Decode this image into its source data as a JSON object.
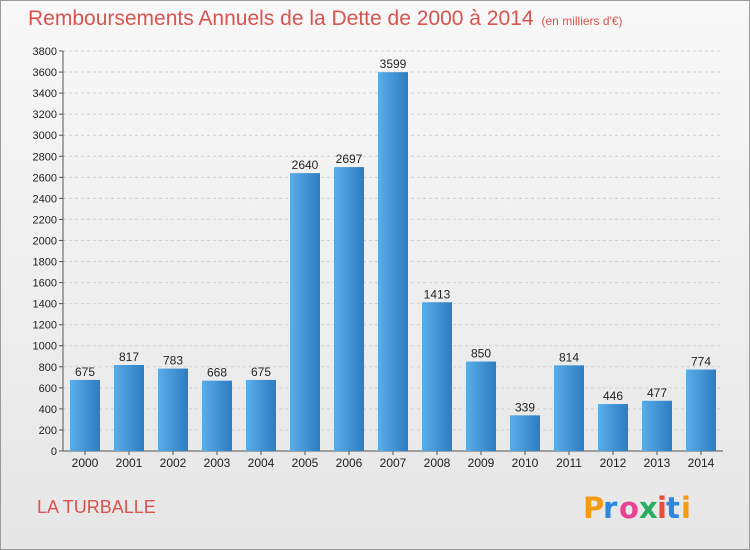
{
  "header": {
    "title": "Remboursements Annuels de la Dette de 2000 à 2014",
    "unit": "(en milliers d'€)"
  },
  "footer": {
    "place": "LA TURBALLE",
    "brand": "Proxiti"
  },
  "colors": {
    "title": "#d9534f",
    "bar_light": "#5aaee8",
    "bar_dark": "#2c7cc2"
  },
  "chart_data": {
    "type": "bar",
    "title": "Remboursements Annuels de la Dette de 2000 à 2014",
    "subtitle": "(en milliers d'€)",
    "xlabel": "",
    "ylabel": "",
    "categories": [
      "2000",
      "2001",
      "2002",
      "2003",
      "2004",
      "2005",
      "2006",
      "2007",
      "2008",
      "2009",
      "2010",
      "2011",
      "2012",
      "2013",
      "2014"
    ],
    "values": [
      675,
      817,
      783,
      668,
      675,
      2640,
      2697,
      3599,
      1413,
      850,
      339,
      814,
      446,
      477,
      774
    ],
    "ylim": [
      0,
      3800
    ],
    "ytick_step": 200,
    "grid": true,
    "data_labels": true
  }
}
